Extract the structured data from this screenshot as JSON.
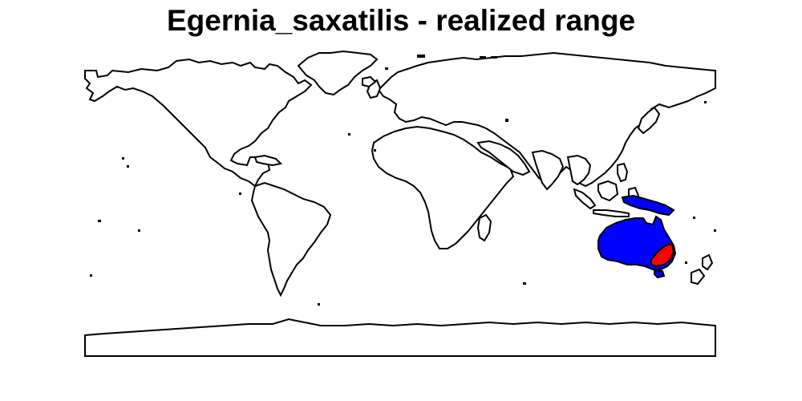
{
  "title": "Egernia_saxatilis - realized range",
  "colors": {
    "background": "#ffffff",
    "outline": "#000000",
    "species_range": "#0000ff",
    "realized_range": "#ff0000"
  },
  "legend": {
    "realized_range_color": "red",
    "species_range_color": "blue"
  }
}
